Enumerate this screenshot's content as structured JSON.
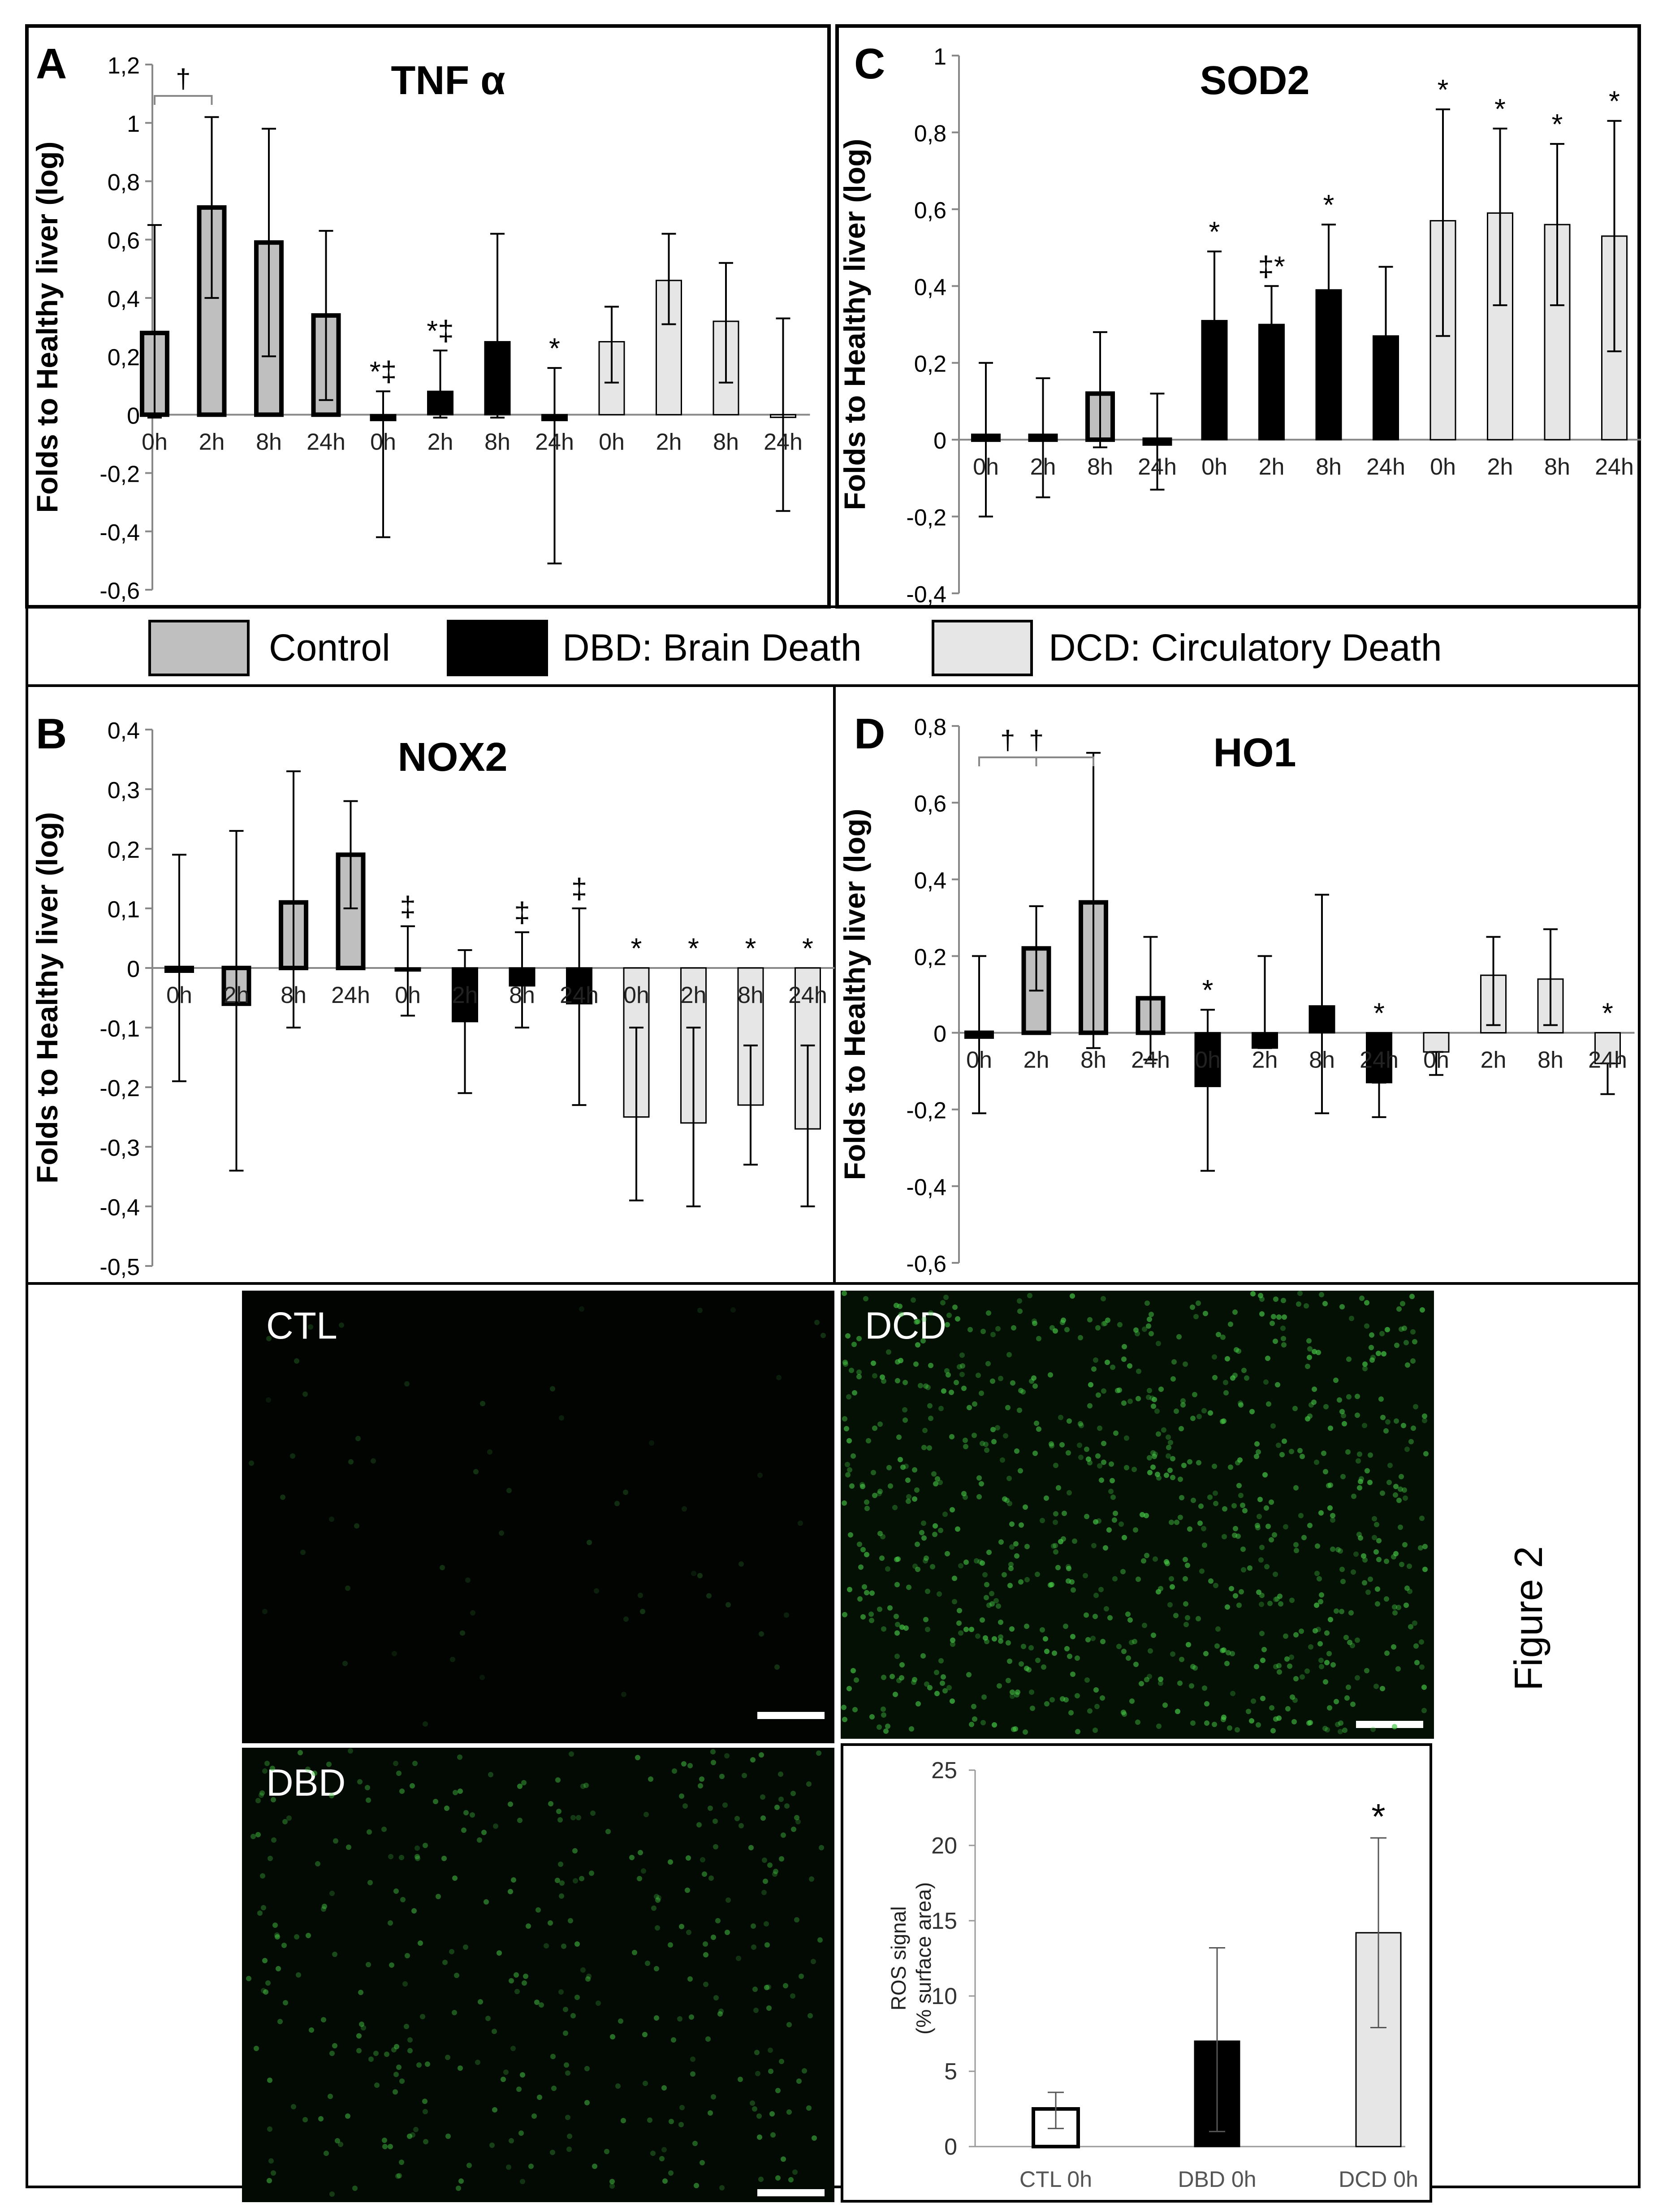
{
  "legend": [
    {
      "label": "Control",
      "color": "#BFBFBF"
    },
    {
      "label": "DBD: Brain Death",
      "color": "#000000"
    },
    {
      "label": "DCD: Circulatory Death",
      "color": "#E6E6E6"
    }
  ],
  "figure_label": "Figure 2",
  "micrographs": [
    {
      "label": "CTL"
    },
    {
      "label": "DCD"
    },
    {
      "label": "DBD"
    }
  ],
  "chart_data": [
    {
      "panel": "A",
      "type": "bar",
      "title": "TNF α",
      "ylabel": "Folds to Healthy liver (log)",
      "ylim": [
        -0.6,
        1.2
      ],
      "yticks": [
        "-0,6",
        "-0,4",
        "-0,2",
        "0",
        "0,2",
        "0,4",
        "0,6",
        "0,8",
        "1",
        "1,2"
      ],
      "categories": [
        "0h",
        "2h",
        "8h",
        "24h",
        "0h",
        "2h",
        "8h",
        "24h",
        "0h",
        "2h",
        "8h",
        "24h"
      ],
      "groups": [
        "Control",
        "Control",
        "Control",
        "Control",
        "DBD",
        "DBD",
        "DBD",
        "DBD",
        "DCD",
        "DCD",
        "DCD",
        "DCD"
      ],
      "values": [
        0.28,
        0.71,
        0.59,
        0.34,
        -0.02,
        0.08,
        0.25,
        -0.02,
        0.25,
        0.46,
        0.32,
        0.0
      ],
      "err_low": [
        -0.01,
        0.4,
        0.2,
        0.05,
        -0.42,
        -0.01,
        -0.01,
        -0.51,
        0.11,
        0.31,
        0.11,
        -0.33
      ],
      "err_high": [
        0.65,
        1.02,
        0.98,
        0.63,
        0.08,
        0.22,
        0.62,
        0.16,
        0.37,
        0.62,
        0.52,
        0.33
      ],
      "annotations": [
        "",
        "",
        "",
        "",
        "*‡",
        "*‡",
        "",
        "*",
        "",
        "",
        "",
        ""
      ],
      "brackets": [
        {
          "from": 0,
          "to": 1,
          "symbol": "†"
        }
      ]
    },
    {
      "panel": "C",
      "type": "bar",
      "title": "SOD2",
      "ylabel": "Folds to Healthy liver (log)",
      "ylim": [
        -0.4,
        1.0
      ],
      "yticks": [
        "-0,4",
        "-0,2",
        "0",
        "0,2",
        "0,4",
        "0,6",
        "0,8",
        "1"
      ],
      "categories": [
        "0h",
        "2h",
        "8h",
        "24h",
        "0h",
        "2h",
        "8h",
        "24h",
        "0h",
        "2h",
        "8h",
        "24h"
      ],
      "groups": [
        "Control",
        "Control",
        "Control",
        "Control",
        "DBD",
        "DBD",
        "DBD",
        "DBD",
        "DCD",
        "DCD",
        "DCD",
        "DCD"
      ],
      "values": [
        0.01,
        0.01,
        0.12,
        -0.01,
        0.31,
        0.3,
        0.39,
        0.27,
        0.57,
        0.59,
        0.56,
        0.53
      ],
      "err_low": [
        -0.2,
        -0.15,
        -0.02,
        -0.13,
        0.2,
        0.2,
        0.29,
        0.12,
        0.27,
        0.35,
        0.35,
        0.23
      ],
      "err_high": [
        0.2,
        0.16,
        0.28,
        0.12,
        0.49,
        0.4,
        0.56,
        0.45,
        0.86,
        0.81,
        0.77,
        0.83
      ],
      "annotations": [
        "",
        "",
        "",
        "",
        "*",
        "‡*",
        "*",
        "",
        "*",
        "*",
        "*",
        "*"
      ],
      "brackets": []
    },
    {
      "panel": "B",
      "type": "bar",
      "title": "NOX2",
      "ylabel": "Folds to Healthy liver (log)",
      "ylim": [
        -0.5,
        0.4
      ],
      "yticks": [
        "-0,5",
        "-0,4",
        "-0,3",
        "-0,2",
        "-0,1",
        "0",
        "0,1",
        "0,2",
        "0,3",
        "0,4"
      ],
      "categories": [
        "0h",
        "2h",
        "8h",
        "24h",
        "0h",
        "2h",
        "8h",
        "24h",
        "0h",
        "2h",
        "8h",
        "24h"
      ],
      "groups": [
        "Control",
        "Control",
        "Control",
        "Control",
        "DBD",
        "DBD",
        "DBD",
        "DBD",
        "DCD",
        "DCD",
        "DCD",
        "DCD"
      ],
      "values": [
        0.0,
        -0.06,
        0.11,
        0.19,
        -0.005,
        -0.09,
        -0.03,
        -0.06,
        -0.25,
        -0.26,
        -0.23,
        -0.27
      ],
      "err_low": [
        -0.19,
        -0.34,
        -0.1,
        0.1,
        -0.08,
        -0.21,
        -0.1,
        -0.23,
        -0.39,
        -0.4,
        -0.33,
        -0.4
      ],
      "err_high": [
        0.19,
        0.23,
        0.33,
        0.28,
        0.07,
        0.03,
        0.06,
        0.1,
        -0.1,
        -0.1,
        -0.13,
        -0.13
      ],
      "annotations": [
        "",
        "",
        "",
        "",
        "‡",
        "",
        "‡",
        "‡",
        "*",
        "*",
        "*",
        "*"
      ],
      "brackets": []
    },
    {
      "panel": "D",
      "type": "bar",
      "title": "HO1",
      "ylabel": "Folds to Healthy liver (log)",
      "ylim": [
        -0.6,
        0.8
      ],
      "yticks": [
        "-0,6",
        "-0,4",
        "-0,2",
        "0",
        "0,2",
        "0,4",
        "0,6",
        "0,8"
      ],
      "categories": [
        "0h",
        "2h",
        "8h",
        "24h",
        "0h",
        "2h",
        "8h",
        "24h",
        "0h",
        "2h",
        "8h",
        "24h"
      ],
      "groups": [
        "Control",
        "Control",
        "Control",
        "Control",
        "DBD",
        "DBD",
        "DBD",
        "DBD",
        "DCD",
        "DCD",
        "DCD",
        "DCD"
      ],
      "values": [
        -0.01,
        0.22,
        0.34,
        0.09,
        -0.14,
        -0.04,
        0.07,
        -0.13,
        -0.05,
        0.15,
        0.14,
        -0.08
      ],
      "err_low": [
        -0.21,
        0.11,
        -0.04,
        -0.07,
        -0.36,
        -0.04,
        -0.21,
        -0.22,
        -0.11,
        0.02,
        0.02,
        -0.16
      ],
      "err_high": [
        0.2,
        0.33,
        0.73,
        0.25,
        0.06,
        0.2,
        0.36,
        -0.13,
        -0.05,
        0.25,
        0.27,
        -0.08
      ],
      "annotations": [
        "",
        "",
        "",
        "",
        "*",
        "",
        "",
        "*",
        "",
        "",
        "",
        "*"
      ],
      "brackets": [
        {
          "from": 0,
          "to": 1,
          "symbol": "†"
        },
        {
          "from": 0,
          "to": 2,
          "symbol": "†"
        }
      ]
    },
    {
      "panel": "ROS",
      "type": "bar",
      "title": "",
      "ylabel": "ROS signal (% surface area)",
      "ylabel_lines": [
        "ROS signal",
        "(% surface area)"
      ],
      "ylim": [
        0,
        25
      ],
      "yticks": [
        "0",
        "5",
        "10",
        "15",
        "20",
        "25"
      ],
      "categories": [
        "CTL 0h",
        "DBD 0h",
        "DCD 0h"
      ],
      "values": [
        2.5,
        7.0,
        14.2
      ],
      "err_low": [
        1.2,
        1.0,
        7.9
      ],
      "err_high": [
        3.6,
        13.2,
        20.5
      ],
      "annotations": [
        "",
        "",
        "*"
      ],
      "colors": [
        "#FFFFFF",
        "#000000",
        "#E6E6E6"
      ]
    }
  ]
}
